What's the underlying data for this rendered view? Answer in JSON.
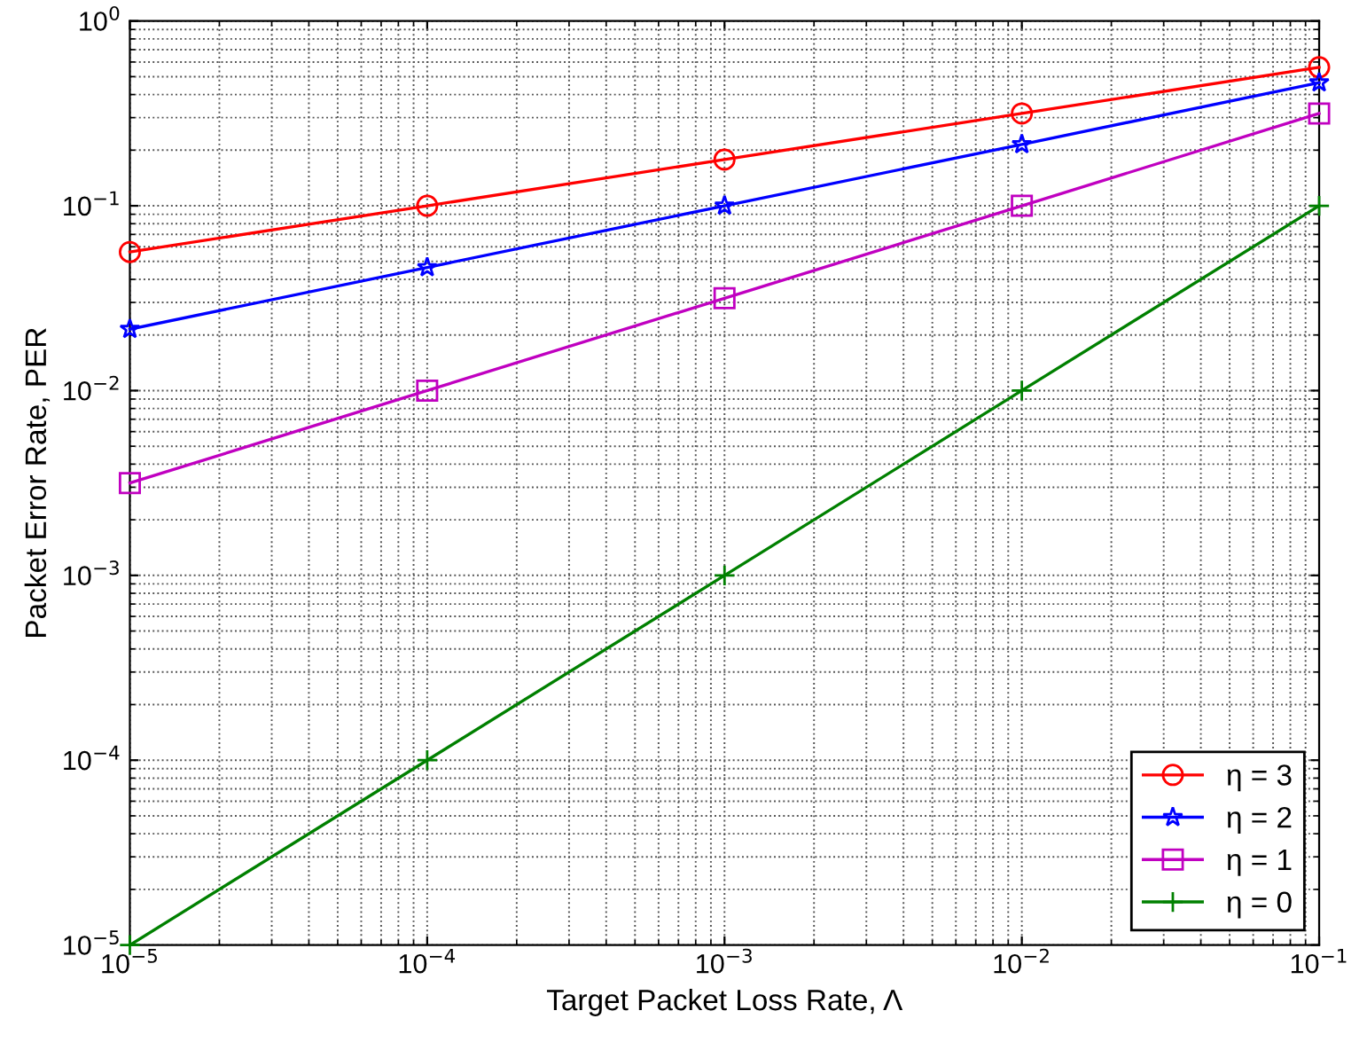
{
  "chart_data": {
    "type": "line",
    "xlabel": "Target Packet Loss Rate, Λ",
    "ylabel": "Packet Error Rate, PER",
    "log": "xy",
    "grid": true,
    "legend": "bottom right",
    "line_style": "solid",
    "x": [
      1e-05,
      0.0001,
      0.001,
      0.01,
      0.1
    ],
    "xlim": [
      1e-05,
      0.1
    ],
    "ylim": [
      1e-05,
      1
    ],
    "xticks": [
      {
        "value": 1e-05,
        "label": "10$^{−5}$"
      },
      {
        "value": 0.0001,
        "label": "10$^{−4}$"
      },
      {
        "value": 0.001,
        "label": "10$^{−3}$"
      },
      {
        "value": 0.01,
        "label": "10$^{−2}$"
      },
      {
        "value": 0.1,
        "label": "10$^{−1}$"
      }
    ],
    "yticks": [
      {
        "value": 1e-05,
        "label": "10$^{−5}$"
      },
      {
        "value": 0.0001,
        "label": "10$^{−4}$"
      },
      {
        "value": 0.001,
        "label": "10$^{−3}$"
      },
      {
        "value": 0.01,
        "label": "10$^{−2}$"
      },
      {
        "value": 0.1,
        "label": "10$^{−1}$"
      },
      {
        "value": 1,
        "label": "10$^{0}$"
      }
    ],
    "series": [
      {
        "name": "η = 3",
        "color": "#ff0000",
        "marker": "circle",
        "values": [
          0.0562,
          0.1,
          0.178,
          0.316,
          0.562
        ]
      },
      {
        "name": "η = 2",
        "color": "#0000ff",
        "marker": "star",
        "values": [
          0.0215,
          0.0464,
          0.1,
          0.215,
          0.464
        ]
      },
      {
        "name": "η = 1",
        "color": "#c000c0",
        "marker": "square",
        "values": [
          0.00316,
          0.01,
          0.0316,
          0.1,
          0.316
        ]
      },
      {
        "name": "η = 0",
        "color": "#008000",
        "marker": "cross",
        "values": [
          1e-05,
          0.0001,
          0.001,
          0.01,
          0.1
        ]
      }
    ]
  }
}
